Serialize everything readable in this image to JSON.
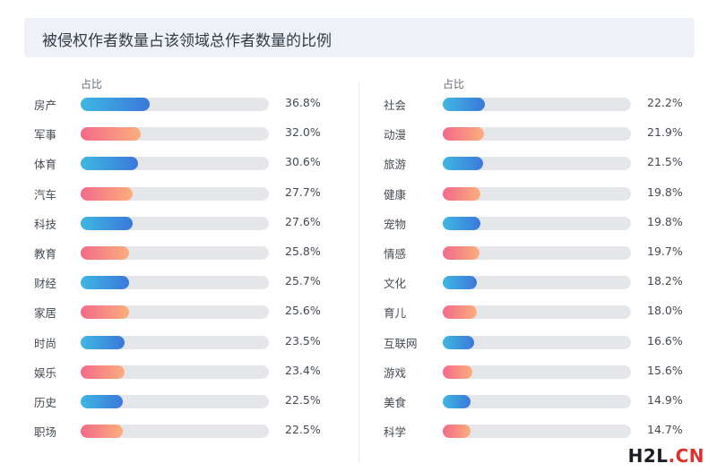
{
  "title": "被侵权作者数量占该领域总作者数量的比例",
  "watermark": {
    "part1": "H2L",
    "part2": ".CN"
  },
  "colors": {
    "blue_start": "#3fb7e2",
    "blue_end": "#3b78da",
    "pink_start": "#f36a8a",
    "pink_end": "#fbae7c",
    "track": "#e5e6ea"
  },
  "chart_data": [
    {
      "type": "bar",
      "orientation": "horizontal",
      "header": "占比",
      "xlim": [
        0,
        100
      ],
      "categories": [
        "房产",
        "军事",
        "体育",
        "汽车",
        "科技",
        "教育",
        "财经",
        "家居",
        "时尚",
        "娱乐",
        "历史",
        "职场"
      ],
      "values": [
        36.8,
        32.0,
        30.6,
        27.7,
        27.6,
        25.8,
        25.7,
        25.6,
        23.5,
        23.4,
        22.5,
        22.5
      ],
      "value_labels": [
        "36.8%",
        "32.0%",
        "30.6%",
        "27.7%",
        "27.6%",
        "25.8%",
        "25.7%",
        "25.6%",
        "23.5%",
        "23.4%",
        "22.5%",
        "22.5%"
      ],
      "bar_colors": [
        "blue",
        "pink",
        "blue",
        "pink",
        "blue",
        "pink",
        "blue",
        "pink",
        "blue",
        "pink",
        "blue",
        "pink"
      ]
    },
    {
      "type": "bar",
      "orientation": "horizontal",
      "header": "占比",
      "xlim": [
        0,
        100
      ],
      "categories": [
        "社会",
        "动漫",
        "旅游",
        "健康",
        "宠物",
        "情感",
        "文化",
        "育儿",
        "互联网",
        "游戏",
        "美食",
        "科学"
      ],
      "values": [
        22.2,
        21.9,
        21.5,
        19.8,
        19.8,
        19.7,
        18.2,
        18.0,
        16.6,
        15.6,
        14.9,
        14.7
      ],
      "value_labels": [
        "22.2%",
        "21.9%",
        "21.5%",
        "19.8%",
        "19.8%",
        "19.7%",
        "18.2%",
        "18.0%",
        "16.6%",
        "15.6%",
        "14.9%",
        "14.7%"
      ],
      "bar_colors": [
        "blue",
        "pink",
        "blue",
        "pink",
        "blue",
        "pink",
        "blue",
        "pink",
        "blue",
        "pink",
        "blue",
        "pink"
      ]
    }
  ]
}
